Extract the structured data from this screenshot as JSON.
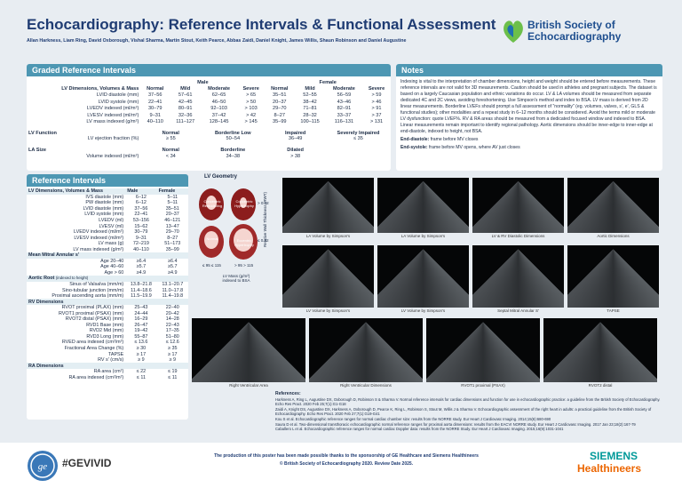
{
  "header": {
    "title": "Echocardiography: Reference Intervals & Functional Assessment",
    "authors": "Allan Harkness, Liam Ring, David Oxborough, Vishal Sharma, Martin Stout, Keith Pearce, Abbas Zaidi, Daniel Knight, James Willis, Shaun Robinson and Daniel Augustine",
    "logo": "British Society of Echocardiography"
  },
  "graded": {
    "title": "Graded Reference Intervals",
    "male": "Male",
    "female": "Female",
    "columns": [
      "LV Dimensions, Volumes & Mass",
      "Normal",
      "Mild",
      "Moderate",
      "Severe",
      "Normal",
      "Mild",
      "Moderate",
      "Severe"
    ],
    "rows": [
      [
        "LVID diastole (mm)",
        "37–56",
        "57–61",
        "62–65",
        "> 65",
        "35–51",
        "52–55",
        "56–59",
        "> 59"
      ],
      [
        "LVID systole (mm)",
        "22–41",
        "42–45",
        "46–50",
        "> 50",
        "20–37",
        "38–42",
        "43–46",
        "> 46"
      ],
      [
        "LVEDV indexed (ml/m²)",
        "30–79",
        "80–91",
        "92–103",
        "> 103",
        "29–70",
        "71–81",
        "82–91",
        "> 91"
      ],
      [
        "LVESV indexed (ml/m²)",
        "9–31",
        "32–36",
        "37–42",
        "> 42",
        "8–27",
        "28–32",
        "33–37",
        "> 37"
      ],
      [
        "LV mass indexed (g/m²)",
        "40–110",
        "111–127",
        "128–145",
        "> 145",
        "35–99",
        "100–115",
        "116–131",
        "> 131"
      ]
    ],
    "lv_function": {
      "heading": "LV Function",
      "columns": [
        "Normal",
        "Borderline Low",
        "Impaired",
        "Severely Impaired"
      ],
      "row": [
        "LV ejection fraction (%)",
        "≥ 55",
        "50–54",
        "36–49",
        "≤ 35"
      ]
    },
    "la_size": {
      "heading": "LA Size",
      "columns": [
        "Normal",
        "Borderline",
        "Dilated"
      ],
      "row": [
        "Volume indexed (ml/m²)",
        "< 34",
        "34–38",
        "> 38"
      ]
    }
  },
  "notes": {
    "title": "Notes",
    "text": "Indexing is vital to the interpretation of chamber dimensions, height and weight should be entered before measurements. These reference intervals are not valid for 3D measurements. Caution should be used in athletes and pregnant subjects. The dataset is based on a largely Caucasian population and ethnic variations do occur. LV & LA volumes should be measured from separate dedicated 4C and 2C views, avoiding foreshortening. Use Simpson's method and index to BSA. LV mass is derived from 2D linear measurements. Borderline LVEFs should prompt a full assessment of \"normality\" (eg. volumes, valves, s', e', GLS & functional studies); other modalities and a repeat study in 6–12 months should be considered. Avoid the terms mild or moderate LV dysfunction: quote LVEF%. RV & RA areas should be measured from a dedicated focused window and indexed to BSA. Linear measurements remain important to identify regional pathology. Aortic dimensions should be inner-edge to inner-edge at end-diastole, indexed to height, not BSA.",
    "definitions": [
      {
        "term": "End-diastole:",
        "text": "frame before MV closes"
      },
      {
        "term": "End-systole:",
        "text": "frame before MV opens, where AV just closes"
      }
    ]
  },
  "reference": {
    "title": "Reference Intervals",
    "sections": [
      {
        "heading": "LV Dimensions, Volumes & Mass",
        "columns": [
          "Male",
          "Female"
        ],
        "rows": [
          [
            "IVS diastole (mm)",
            "6–12",
            "5–11"
          ],
          [
            "PW diastole (mm)",
            "6–12",
            "5–11"
          ],
          [
            "LVID diastole (mm)",
            "37–56",
            "35–51"
          ],
          [
            "LVID systole (mm)",
            "22–41",
            "20–37"
          ],
          [
            "LVEDV (ml)",
            "53–156",
            "46–121"
          ],
          [
            "LVESV (ml)",
            "15–62",
            "13–47"
          ],
          [
            "LVEDV indexed (ml/m²)",
            "30–79",
            "29–70"
          ],
          [
            "LVESV indexed (ml/m²)",
            "9–31",
            "8–27"
          ],
          [
            "LV mass (g)",
            "72–219",
            "51–173"
          ],
          [
            "LV mass indexed (g/m²)",
            "40–110",
            "35–99"
          ]
        ]
      },
      {
        "heading": "Mean Mitral Annular s'",
        "rows": [
          [
            "Age 20–40",
            "≥6.4",
            "≥6.4"
          ],
          [
            "Age 40–60",
            "≥5.7",
            "≥5.7"
          ],
          [
            "Age > 60",
            "≥4.9",
            "≥4.9"
          ]
        ]
      },
      {
        "heading": "Aortic Root",
        "note": "(indexed to height)",
        "rows": [
          [
            "Sinus of Valsalva (mm/m)",
            "13.8–21.8",
            "13.1–20.7"
          ],
          [
            "Sino-tubular junction (mm/m)",
            "11.4–18.6",
            "11.0–17.8"
          ],
          [
            "Proximal ascending aorta (mm/m)",
            "11.5–19.9",
            "11.4–19.8"
          ]
        ]
      },
      {
        "heading": "RV Dimensions",
        "rows": [
          [
            "RVOT proximal (PLAX) (mm)",
            "25–43",
            "22–40"
          ],
          [
            "RVOT1 proximal (PSAX) (mm)",
            "24–44",
            "20–42"
          ],
          [
            "RVOT2 distal (PSAX) (mm)",
            "16–29",
            "14–28"
          ],
          [
            "RVD1 Base (mm)",
            "26–47",
            "22–43"
          ],
          [
            "RVD2 Mid (mm)",
            "19–42",
            "17–35"
          ],
          [
            "RVD3 Long (mm)",
            "55–87",
            "51–80"
          ],
          [
            "RVED area indexed (cm²/m²)",
            "≤ 13.6",
            "≤ 12.6"
          ],
          [
            "Fractional Area Change (%)",
            "≥ 30",
            "≥ 35"
          ],
          [
            "TAPSE",
            "≥ 17",
            "≥ 17"
          ],
          [
            "RV s' (cm/s)",
            "≥ 9",
            "≥ 9"
          ]
        ]
      },
      {
        "heading": "RA Dimensions",
        "rows": [
          [
            "RA area (cm²)",
            "≤ 22",
            "≤ 19"
          ],
          [
            "RA area indexed (cm²/m²)",
            "≤ 11",
            "≤ 11"
          ]
        ]
      }
    ]
  },
  "geometry": {
    "title": "LV Geometry",
    "y_label": "Relative Wall Thickness (RWT)",
    "y_high": "> 0.42",
    "y_low": "≤ 0.42",
    "x_low": "≤ 95  ≤ 115",
    "x_high": "> 95  > 115",
    "x_label": "LV Mass (g/m²) indexed to BSA",
    "hearts": [
      "Concentric Remodelling",
      "Concentric Hypertrophy",
      "Normal",
      "Eccentric Hypertrophy"
    ]
  },
  "images": [
    "LA Volume by Simpson's",
    "LA Volume by Simpson's",
    "LV & RV Diastolic Dimensions",
    "Aortic Dimensions",
    "LV Volume by Simpson's",
    "LV Volume by Simpson's",
    "Septal Mitral Annular S'",
    "TAPSE",
    "Right Ventricular Area",
    "Right Ventricular Dimensions",
    "RVOT1 proximal (PSAX)",
    "RVOT2 distal"
  ],
  "references": {
    "title": "References:",
    "items": [
      "Harkness A, Ring L, Augustine DX, Oxborough D, Robinson S & Sharma V. Normal reference intervals for cardiac dimensions and function for use in echocardiographic practice: a guideline from the British Society of Echocardiography. Echo Res Pract. 2020 Feb 25;7(1):G1-G18",
      "Zaidi A, Knight DS, Augustine DX, Harkness A, Oxborough D, Pearce K, Ring L, Robinson S, Stout M, Willis J & Sharma V. Echocardiographic assessment of the right heart in adults: a practical guideline from the British Society of Echocardiography. Echo Res Pract. 2020 Feb 27;7(1):G19-G41",
      "Kou S et al. Echocardiographic reference ranges for normal cardiac chamber size: results from the NORRE study. Eur Heart J Cardiovasc Imaging. 2014;15(6):680-690",
      "Saura D et al. Two-dimensional transthoracic echocardiographic normal reference ranges for proximal aorta dimensions: results from the EACVI NORRE study. Eur Heart J Cardiovasc Imaging. 2017 Jan 23;18(2):167-79",
      "Caballero L et al. Echocardiographic reference ranges for normal cardiac Doppler data: results from the NORRE Study. Eur Heart J Cardiovasc Imaging. 2015;16(9):1031-1041"
    ]
  },
  "footer": {
    "hashtag": "#GEVIVID",
    "sponsor": "The production of this poster has been made possible thanks to the sponsorship of GE Healthcare and Siemens Healthineers",
    "copyright": "© British Society of Echocardiography 2020. Review Date 2025.",
    "siemens": "SIEMENS",
    "healthineers": "Healthineers"
  }
}
